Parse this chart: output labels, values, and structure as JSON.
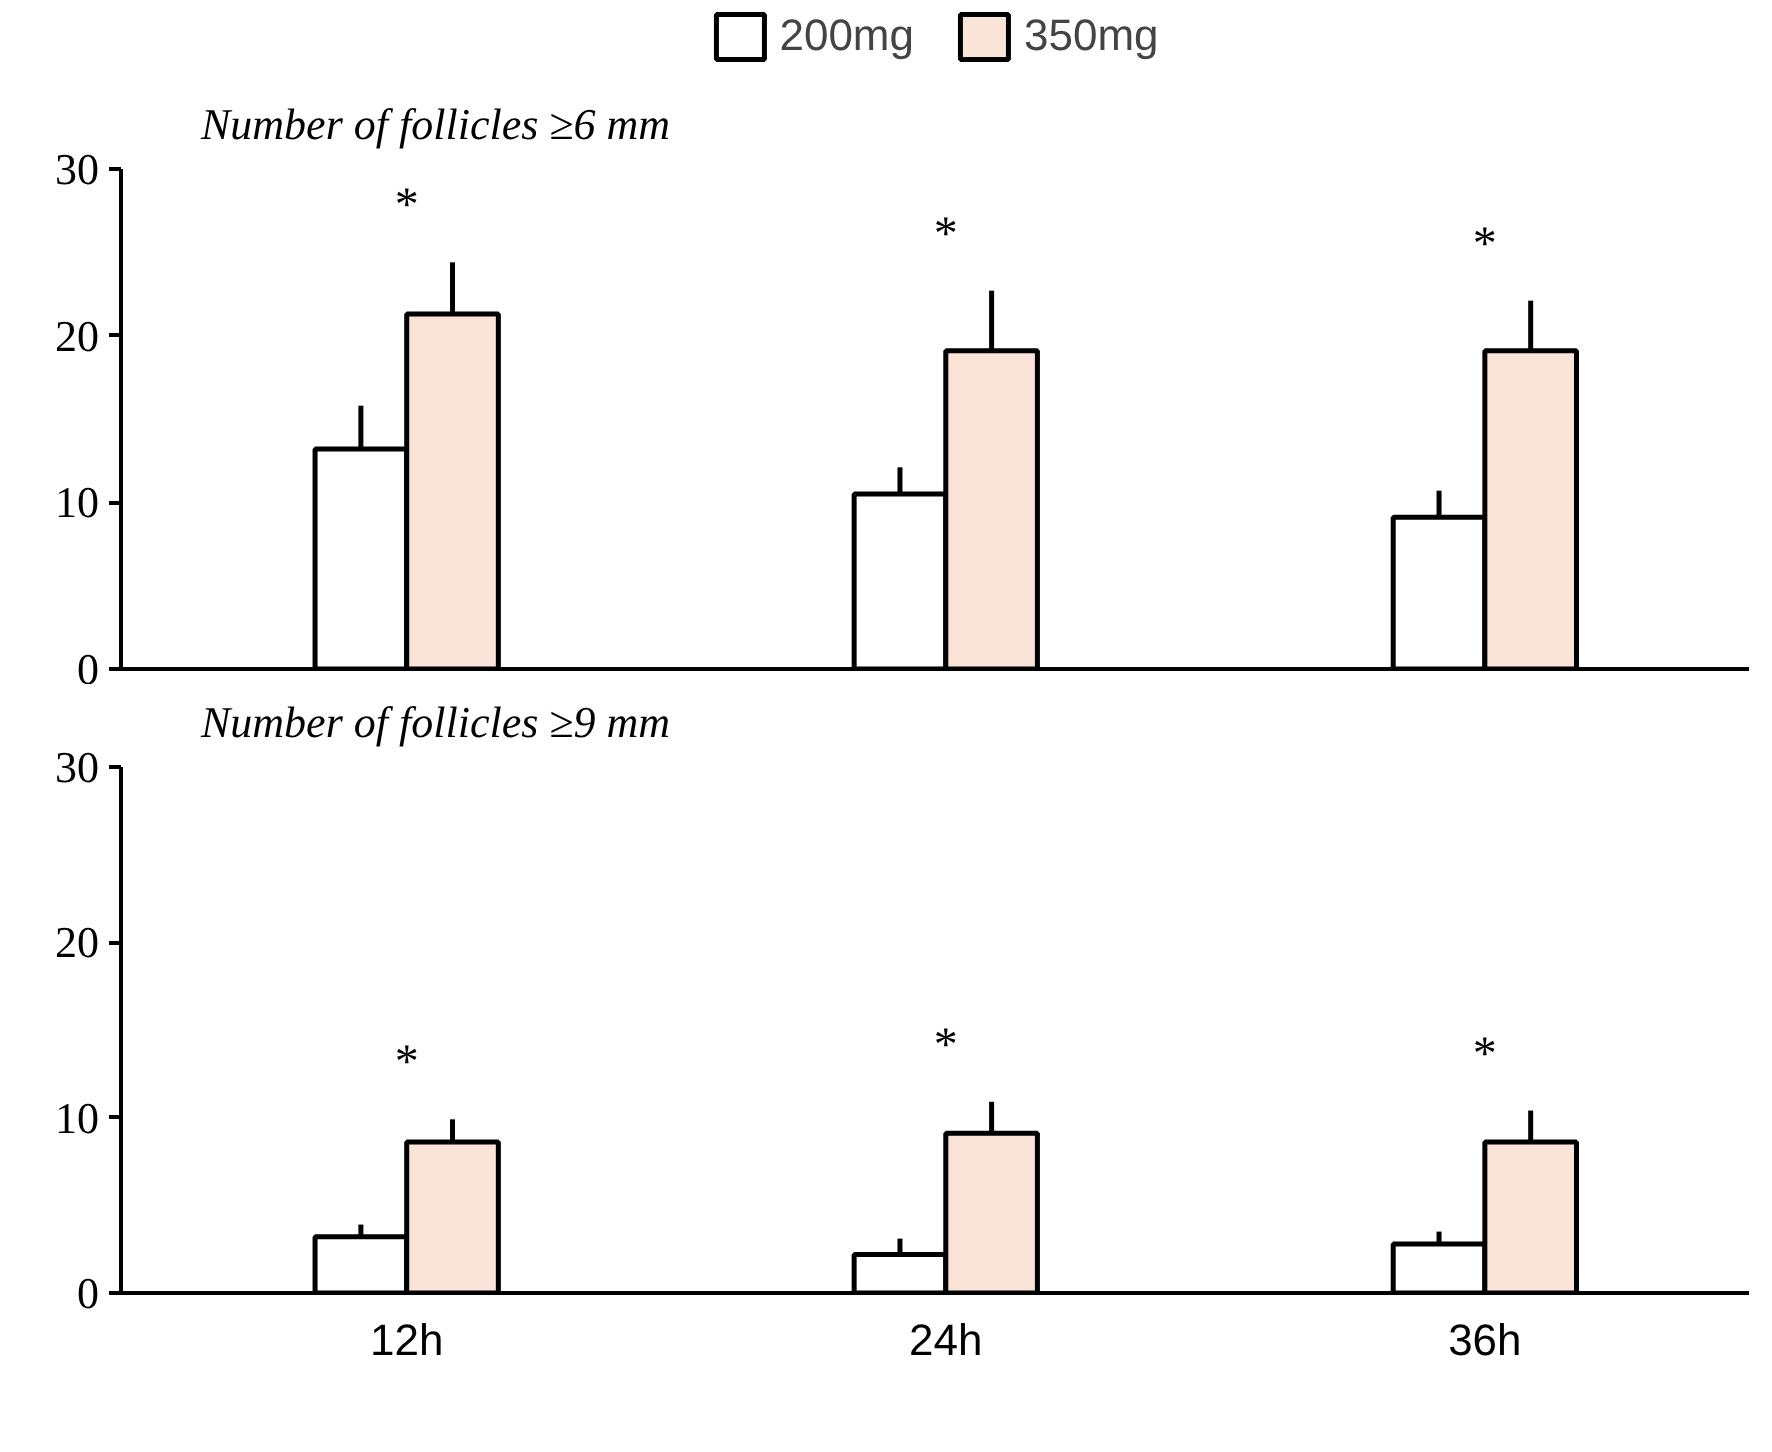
{
  "chart_data": [
    {
      "type": "bar",
      "title": "Number of follicles ≥6 mm",
      "categories": [
        null,
        null,
        null
      ],
      "series": [
        {
          "name": "200mg",
          "color": "#ffffff",
          "values": [
            13.2,
            10.5,
            9.1
          ],
          "errors": [
            [
              13.2,
              15.8
            ],
            [
              10.5,
              12.1
            ],
            [
              9.1,
              10.7
            ]
          ]
        },
        {
          "name": "350mg",
          "color": "#fae3d7",
          "values": [
            21.3,
            19.1,
            19.1
          ],
          "errors": [
            [
              21.3,
              24.4
            ],
            [
              19.1,
              22.7
            ],
            [
              19.1,
              22.1
            ]
          ]
        }
      ],
      "ylim": [
        0,
        30
      ],
      "yticks": [
        0,
        10,
        20,
        30
      ],
      "legend": "top",
      "tick_labels": "y",
      "grid": false,
      "annotations": [
        "*",
        "*",
        "*"
      ]
    },
    {
      "type": "bar",
      "title": "Number of follicles ≥9 mm",
      "categories": [
        "12h",
        "24h",
        "36h"
      ],
      "series": [
        {
          "color": "#ffffff",
          "values": [
            3.2,
            2.2,
            2.8
          ],
          "errors": [
            [
              3.2,
              3.9
            ],
            [
              2.2,
              3.1
            ],
            [
              2.8,
              3.5
            ]
          ]
        },
        {
          "color": "#fae3d7",
          "values": [
            8.6,
            9.1,
            8.6
          ],
          "errors": [
            [
              8.6,
              9.9
            ],
            [
              9.1,
              10.9
            ],
            [
              8.6,
              10.4
            ]
          ]
        }
      ],
      "ylim": [
        0,
        30
      ],
      "yticks": [
        0,
        10,
        20,
        30
      ],
      "grid": false,
      "annotations": [
        "*",
        "*",
        "*"
      ]
    }
  ]
}
